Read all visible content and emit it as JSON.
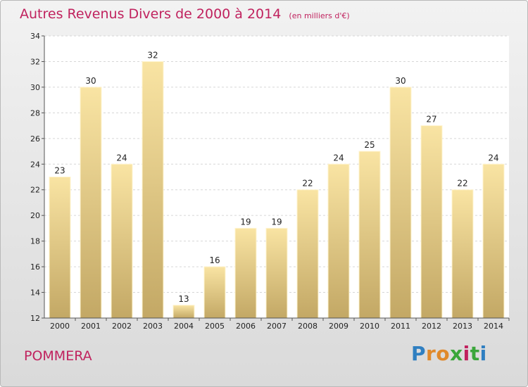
{
  "title": "Autres Revenus Divers de 2000 à 2014",
  "subtitle": "(en milliers d'€)",
  "commune": "POMMERA",
  "logo": {
    "letters": [
      "P",
      "r",
      "o",
      "x",
      "i",
      "t",
      "i"
    ],
    "colors": [
      "#2f7fc1",
      "#e0892b",
      "#e0892b",
      "#3aa63a",
      "#c0225e",
      "#3aa63a",
      "#2f7fc1"
    ]
  },
  "colors": {
    "title": "#c0225e",
    "bar_top": "#f9e4a3",
    "bar_bottom": "#c3a865"
  },
  "chart_data": {
    "type": "bar",
    "categories": [
      "2000",
      "2001",
      "2002",
      "2003",
      "2004",
      "2005",
      "2006",
      "2007",
      "2008",
      "2009",
      "2010",
      "2011",
      "2012",
      "2013",
      "2014"
    ],
    "values": [
      23,
      30,
      24,
      32,
      13,
      16,
      19,
      19,
      22,
      24,
      25,
      30,
      27,
      22,
      24
    ],
    "ylim": [
      12,
      34
    ],
    "yticks": [
      12,
      14,
      16,
      18,
      20,
      22,
      24,
      26,
      28,
      30,
      32,
      34
    ],
    "grid": true
  }
}
